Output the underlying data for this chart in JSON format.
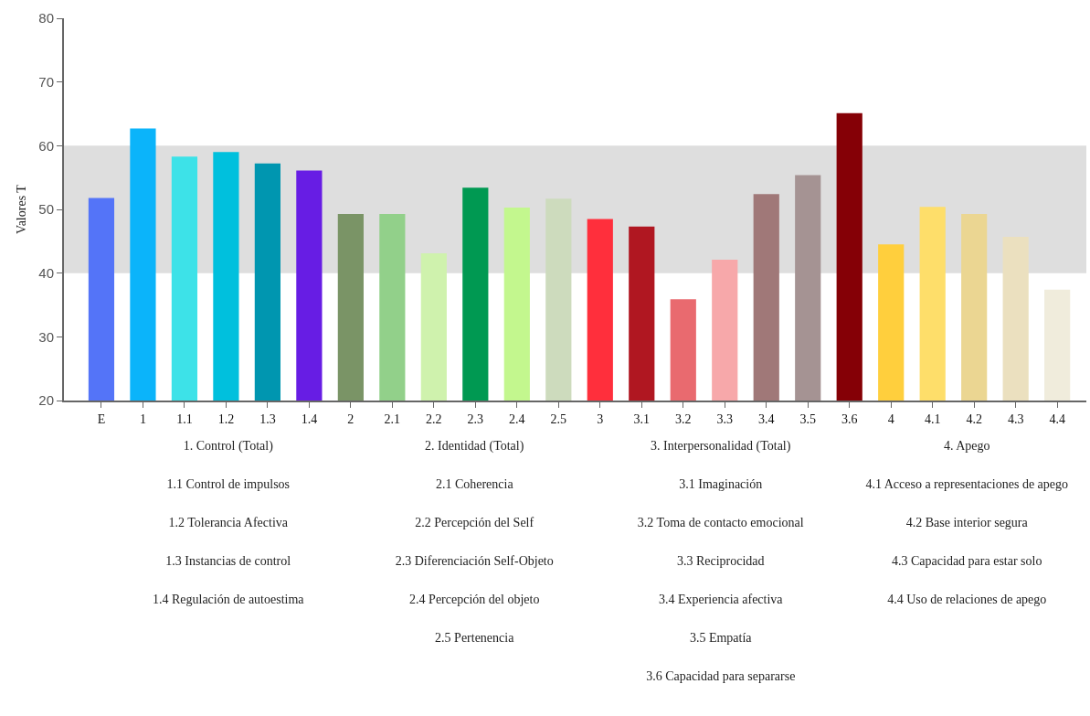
{
  "chart_data": {
    "type": "bar",
    "ylabel": "Valores T",
    "categories": [
      "E",
      "1",
      "1.1",
      "1.2",
      "1.3",
      "1.4",
      "2",
      "2.1",
      "2.2",
      "2.3",
      "2.4",
      "2.5",
      "3",
      "3.1",
      "3.2",
      "3.3",
      "3.4",
      "3.5",
      "3.6",
      "4",
      "4.1",
      "4.2",
      "4.3",
      "4.4"
    ],
    "values": [
      51.8,
      62.7,
      58.3,
      59.0,
      57.2,
      56.1,
      49.3,
      49.3,
      43.1,
      53.4,
      50.3,
      51.7,
      48.5,
      47.3,
      35.9,
      42.1,
      52.4,
      55.4,
      65.1,
      44.5,
      50.4,
      49.3,
      45.7,
      37.4
    ],
    "colors": [
      "#5474f8",
      "#0bb4fa",
      "#3de2e8",
      "#00c0dd",
      "#0096b0",
      "#671de4",
      "#7a9466",
      "#92d08a",
      "#cff2ad",
      "#009952",
      "#c3f78e",
      "#cddbbd",
      "#ff2f3c",
      "#b01721",
      "#e96a6f",
      "#f7a8aa",
      "#a07878",
      "#a59393",
      "#850006",
      "#ffcf3d",
      "#fede6a",
      "#ebd692",
      "#ebe0bf",
      "#f0ecdc"
    ],
    "ylim": [
      20,
      80
    ],
    "yticks": [
      20,
      30,
      40,
      50,
      60,
      70,
      80
    ],
    "grid": false,
    "bands": [
      {
        "axis": "y",
        "from": 40,
        "to": 60,
        "color": "#dedede"
      }
    ],
    "annotations": [
      "1. Control (Total)\n1.1 Control de impulsos\n1.2 Tolerancia Afectiva\n1.3 Instancias de control\n1.4 Regulación de autoestima",
      "2. Identidad (Total)\n2.1 Coherencia\n2.2 Percepción del Self\n2.3 Diferenciación Self-Objeto\n2.4 Percepción del objeto\n2.5 Pertenencia",
      "3. Interpersonalidad (Total)\n3.1 Imaginación\n3.2 Toma de contacto emocional\n3.3 Reciprocidad\n3.4 Experiencia afectiva\n3.5 Empatía\n3.6 Capacidad para separarse",
      "4. Apego\n4.1 Acceso a representaciones de apego\n4.2 Base interior segura\n4.3 Capacidad para estar solo\n4.4 Uso de relaciones de apego"
    ]
  }
}
